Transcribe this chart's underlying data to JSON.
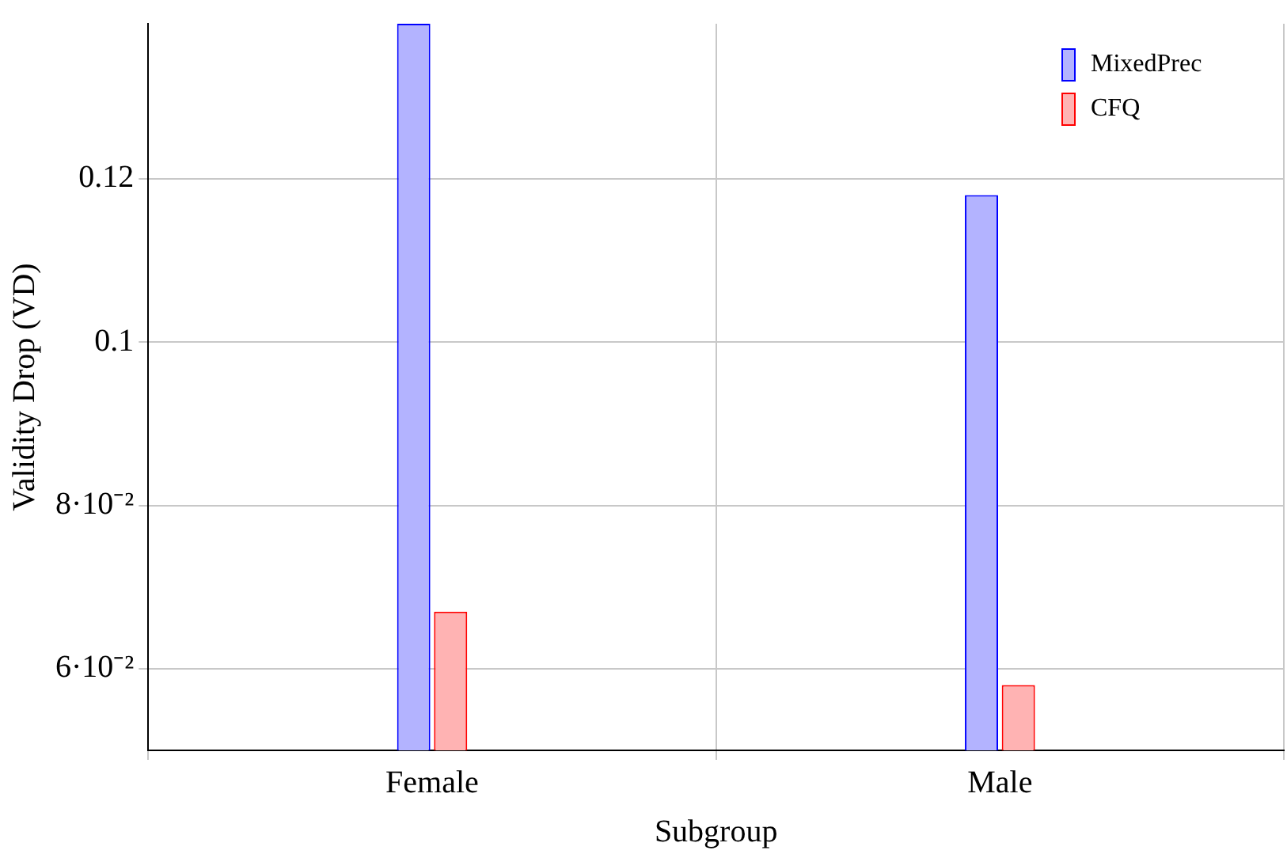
{
  "chart_data": {
    "type": "bar",
    "xlabel": "Subgroup",
    "ylabel": "Validity Drop (VD)",
    "categories": [
      "Female",
      "Male"
    ],
    "series": [
      {
        "name": "MixedPrec",
        "color": "#b3b3ff",
        "values": [
          0.139,
          0.118
        ]
      },
      {
        "name": "CFQ",
        "color": "#ffb3b3",
        "values": [
          0.067,
          0.058
        ]
      }
    ],
    "ylim": [
      0.05,
      0.139
    ],
    "yticks": [
      {
        "value": 0.06,
        "label": "6·10⁻²"
      },
      {
        "value": 0.08,
        "label": "8·10⁻²"
      },
      0.1,
      0.12
    ],
    "grid": true,
    "legend": "top right"
  }
}
